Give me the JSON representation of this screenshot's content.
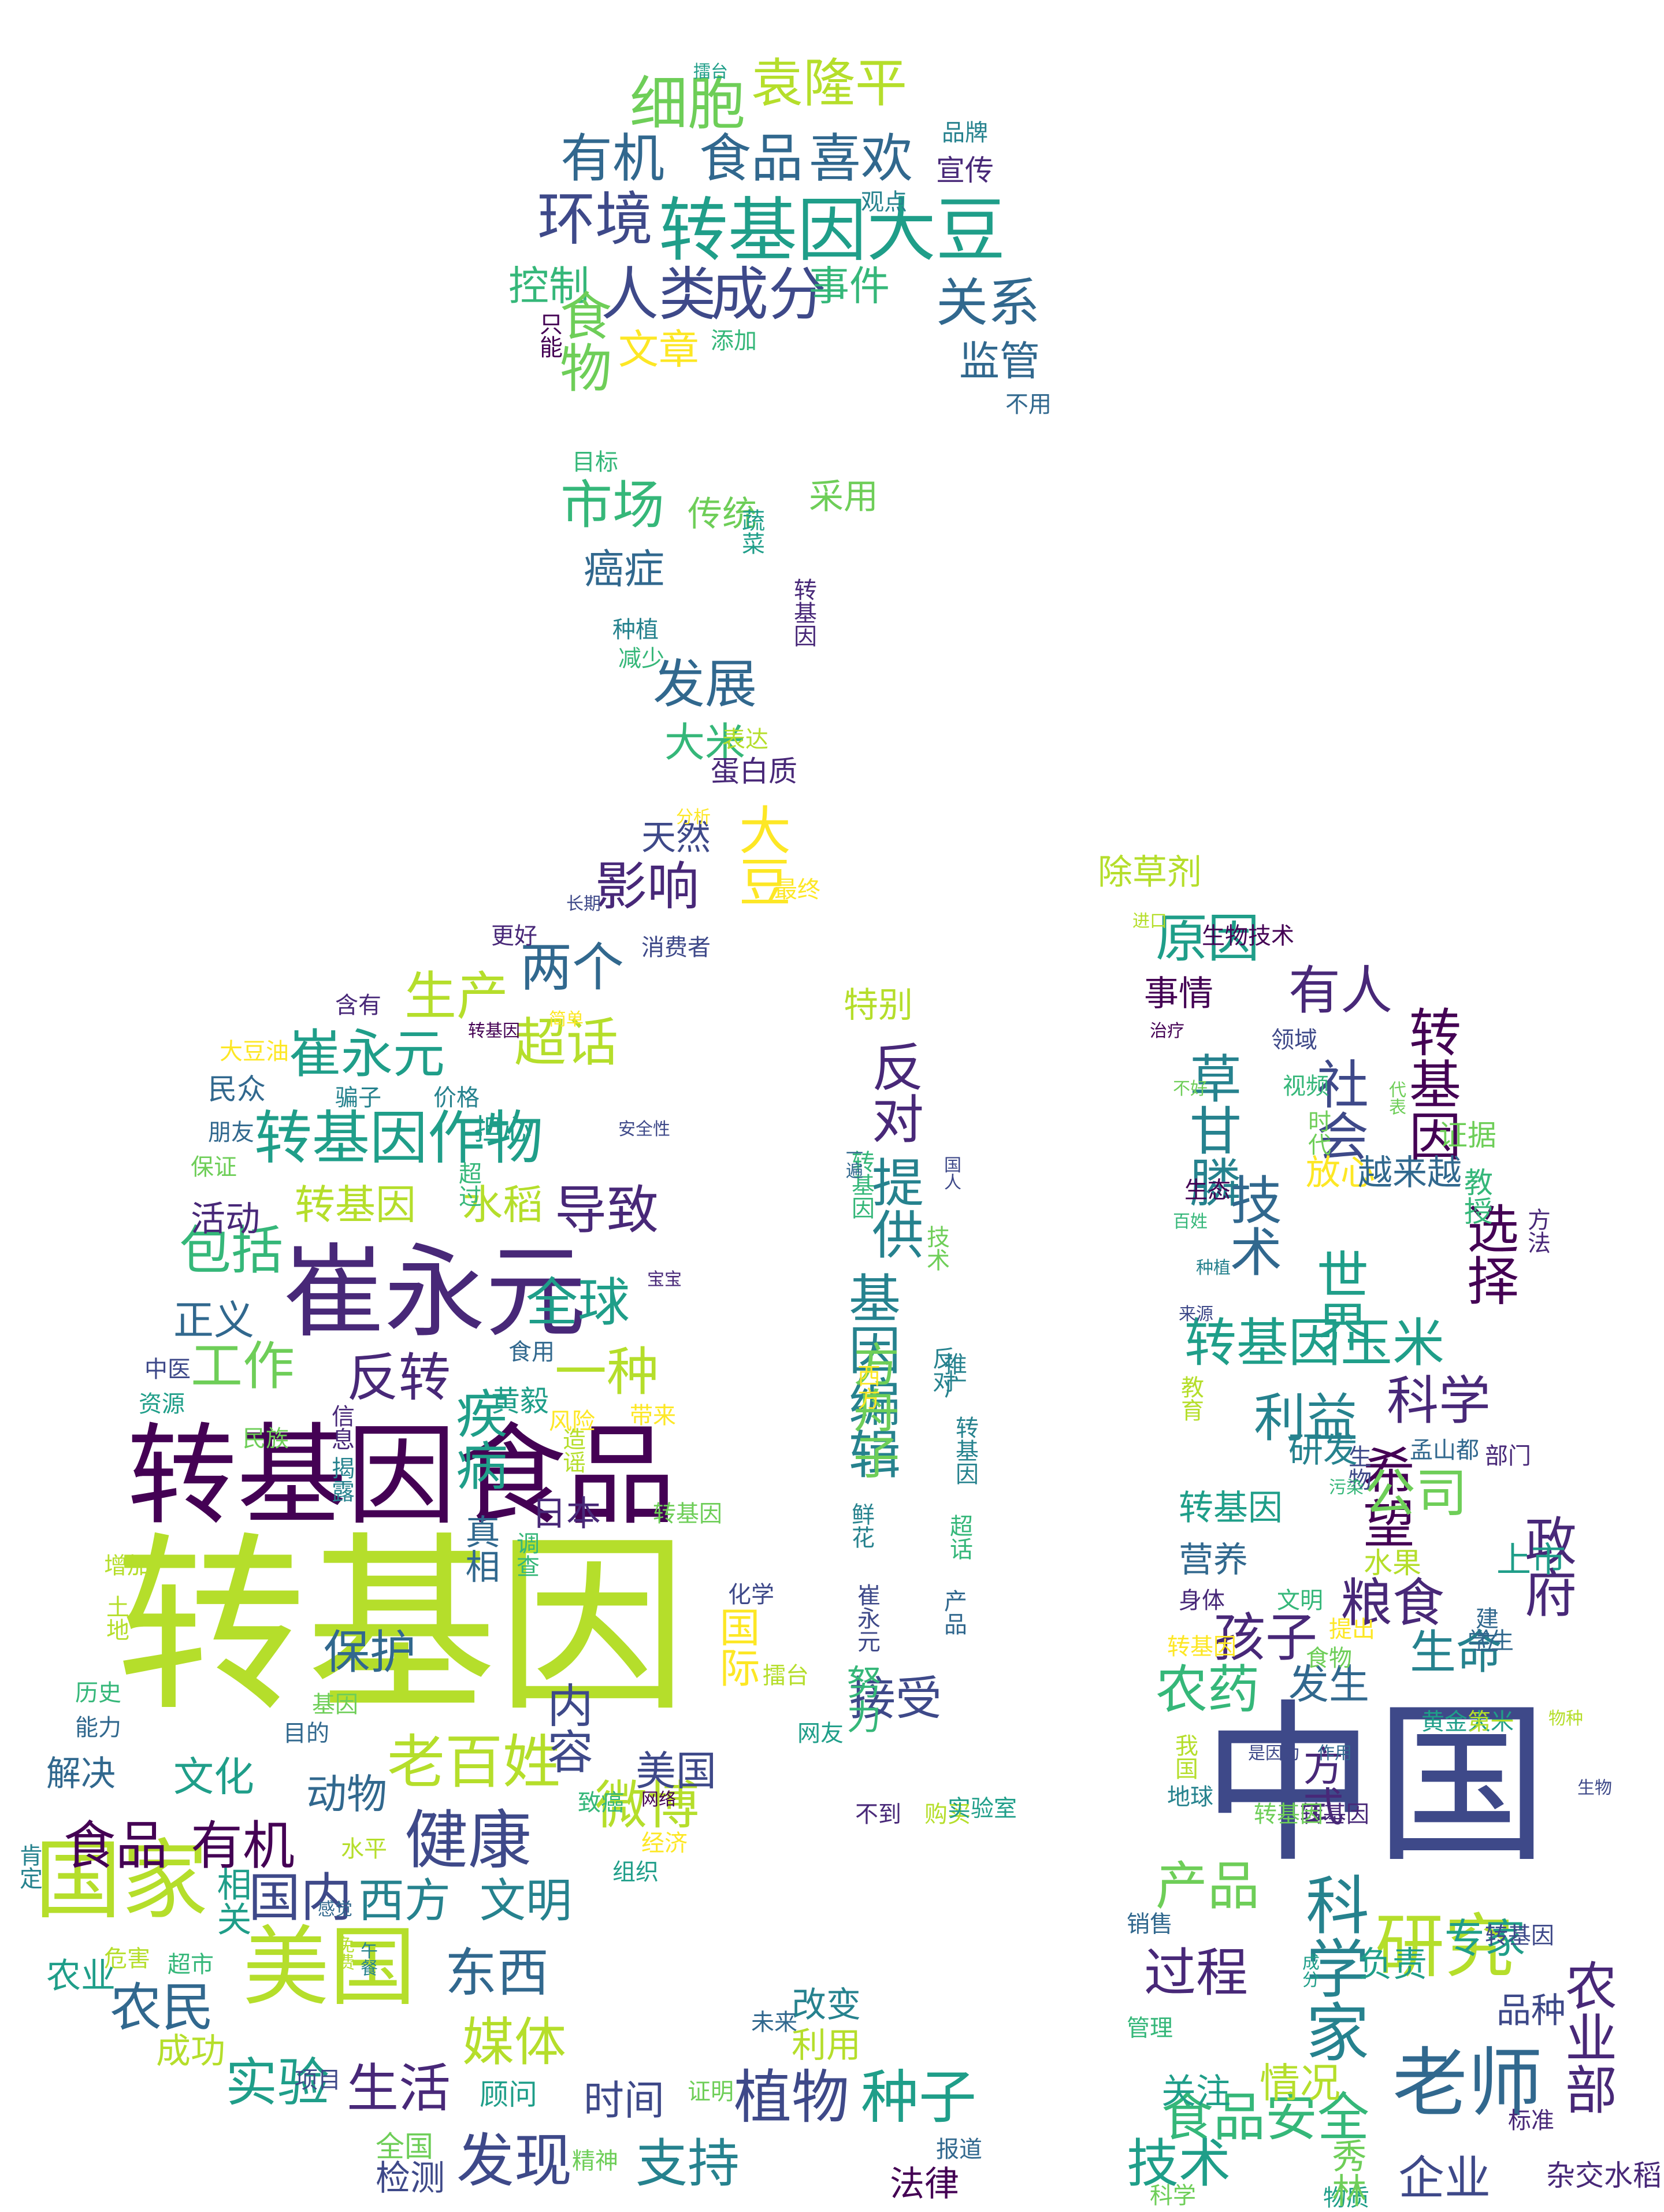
{
  "colors": {
    "background": "#ffffff",
    "palette": [
      "#440154",
      "#482878",
      "#3e4989",
      "#31688e",
      "#26828e",
      "#1f9e89",
      "#35b779",
      "#6ece58",
      "#b5de2b",
      "#fde725"
    ]
  },
  "words": [
    {
      "text": "转基因"
    },
    {
      "text": "中国"
    },
    {
      "text": "转基因食品"
    },
    {
      "text": "崔永元"
    },
    {
      "text": "国家"
    },
    {
      "text": "美国"
    },
    {
      "text": "老师"
    },
    {
      "text": "转基因大豆"
    },
    {
      "text": "研究"
    },
    {
      "text": "健康"
    },
    {
      "text": "科学家"
    },
    {
      "text": "发现"
    },
    {
      "text": "环境"
    },
    {
      "text": "人类"
    },
    {
      "text": "成分"
    },
    {
      "text": "细胞"
    },
    {
      "text": "袁隆平"
    },
    {
      "text": "有机"
    },
    {
      "text": "食品"
    },
    {
      "text": "喜欢"
    },
    {
      "text": "关系"
    },
    {
      "text": "事件"
    },
    {
      "text": "控制"
    },
    {
      "text": "文章"
    },
    {
      "text": "监管"
    },
    {
      "text": "食物"
    },
    {
      "text": "市场"
    },
    {
      "text": "传统"
    },
    {
      "text": "采用"
    },
    {
      "text": "癌症"
    },
    {
      "text": "发展"
    },
    {
      "text": "大米"
    },
    {
      "text": "蛋白质"
    },
    {
      "text": "大豆"
    },
    {
      "text": "影响"
    },
    {
      "text": "天然"
    },
    {
      "text": "生产"
    },
    {
      "text": "两个"
    },
    {
      "text": "崔永元"
    },
    {
      "text": "超话"
    },
    {
      "text": "转基因作物"
    },
    {
      "text": "转基因"
    },
    {
      "text": "水稻"
    },
    {
      "text": "导致"
    },
    {
      "text": "包括"
    },
    {
      "text": "全球"
    },
    {
      "text": "正义"
    },
    {
      "text": "工作"
    },
    {
      "text": "反转"
    },
    {
      "text": "一种"
    },
    {
      "text": "疾病"
    },
    {
      "text": "食品"
    },
    {
      "text": "有机"
    },
    {
      "text": "国内"
    },
    {
      "text": "西方"
    },
    {
      "text": "文明"
    },
    {
      "text": "老百姓"
    },
    {
      "text": "微博"
    },
    {
      "text": "东西"
    },
    {
      "text": "媒体"
    },
    {
      "text": "农民"
    },
    {
      "text": "实验"
    },
    {
      "text": "生活"
    },
    {
      "text": "植物"
    },
    {
      "text": "种子"
    },
    {
      "text": "支持"
    },
    {
      "text": "时间"
    },
    {
      "text": "检测"
    },
    {
      "text": "法律"
    },
    {
      "text": "改变"
    },
    {
      "text": "利用"
    },
    {
      "text": "文化"
    },
    {
      "text": "动物"
    },
    {
      "text": "农业"
    },
    {
      "text": "成功"
    },
    {
      "text": "相关"
    },
    {
      "text": "接受"
    },
    {
      "text": "特别"
    },
    {
      "text": "反对"
    },
    {
      "text": "提供"
    },
    {
      "text": "基因编辑"
    },
    {
      "text": "方舟子"
    },
    {
      "text": "除草剂"
    },
    {
      "text": "原因"
    },
    {
      "text": "有人"
    },
    {
      "text": "事情"
    },
    {
      "text": "草甘膦"
    },
    {
      "text": "社会"
    },
    {
      "text": "技术"
    },
    {
      "text": "世界"
    },
    {
      "text": "转基因"
    },
    {
      "text": "转基因玉米"
    },
    {
      "text": "利益"
    },
    {
      "text": "希望"
    },
    {
      "text": "公司"
    },
    {
      "text": "科学"
    },
    {
      "text": "选择"
    },
    {
      "text": "粮食"
    },
    {
      "text": "孩子"
    },
    {
      "text": "政府"
    },
    {
      "text": "生命"
    },
    {
      "text": "农药"
    },
    {
      "text": "发生"
    },
    {
      "text": "方式"
    },
    {
      "text": "食品安全"
    },
    {
      "text": "产品"
    },
    {
      "text": "过程"
    },
    {
      "text": "技术"
    },
    {
      "text": "农业部"
    },
    {
      "text": "企业"
    },
    {
      "text": "情况"
    },
    {
      "text": "关注"
    },
    {
      "text": "专家"
    },
    {
      "text": "品种"
    },
    {
      "text": "擂台"
    },
    {
      "text": "品牌"
    },
    {
      "text": "观点"
    },
    {
      "text": "宣传"
    },
    {
      "text": "只能"
    },
    {
      "text": "添加"
    },
    {
      "text": "不用"
    },
    {
      "text": "目标"
    },
    {
      "text": "蔬菜"
    },
    {
      "text": "转基因"
    },
    {
      "text": "种植"
    },
    {
      "text": "减少"
    },
    {
      "text": "表达"
    },
    {
      "text": "分析"
    },
    {
      "text": "最终"
    },
    {
      "text": "长期"
    },
    {
      "text": "更好"
    },
    {
      "text": "消费者"
    },
    {
      "text": "含有"
    },
    {
      "text": "简单"
    },
    {
      "text": "转基因"
    },
    {
      "text": "大豆油"
    },
    {
      "text": "民众"
    },
    {
      "text": "骗子"
    },
    {
      "text": "价格"
    },
    {
      "text": "担心"
    },
    {
      "text": "朋友"
    },
    {
      "text": "安全性"
    },
    {
      "text": "保证"
    },
    {
      "text": "超过"
    },
    {
      "text": "活动"
    },
    {
      "text": "中医"
    },
    {
      "text": "食用"
    },
    {
      "text": "黄毅"
    },
    {
      "text": "资源"
    },
    {
      "text": "信息"
    },
    {
      "text": "风险"
    },
    {
      "text": "带来"
    },
    {
      "text": "民族"
    },
    {
      "text": "造谣"
    },
    {
      "text": "真相"
    },
    {
      "text": "揭露"
    },
    {
      "text": "日本"
    },
    {
      "text": "转基因"
    },
    {
      "text": "增加"
    },
    {
      "text": "调查"
    },
    {
      "text": "土地"
    },
    {
      "text": "保护"
    },
    {
      "text": "化学"
    },
    {
      "text": "历史"
    },
    {
      "text": "基因"
    },
    {
      "text": "能力"
    },
    {
      "text": "目的"
    },
    {
      "text": "解决"
    },
    {
      "text": "内容"
    },
    {
      "text": "国际"
    },
    {
      "text": "美国"
    },
    {
      "text": "擂台"
    },
    {
      "text": "网友"
    },
    {
      "text": "致癌"
    },
    {
      "text": "网络"
    },
    {
      "text": "经济"
    },
    {
      "text": "水平"
    },
    {
      "text": "组织"
    },
    {
      "text": "肯定"
    },
    {
      "text": "感觉"
    },
    {
      "text": "危害"
    },
    {
      "text": "超市"
    },
    {
      "text": "免费"
    },
    {
      "text": "午餐"
    },
    {
      "text": "证明"
    },
    {
      "text": "顾问"
    },
    {
      "text": "精神"
    },
    {
      "text": "全国"
    },
    {
      "text": "项目"
    },
    {
      "text": "未来"
    },
    {
      "text": "不到"
    },
    {
      "text": "购买"
    },
    {
      "text": "报道"
    },
    {
      "text": "努力"
    },
    {
      "text": "实验室"
    },
    {
      "text": "推广"
    },
    {
      "text": "转基因"
    },
    {
      "text": "进口"
    },
    {
      "text": "生物技术"
    },
    {
      "text": "治疗"
    },
    {
      "text": "领域"
    },
    {
      "text": "不好"
    },
    {
      "text": "视频"
    },
    {
      "text": "代表"
    },
    {
      "text": "时代"
    },
    {
      "text": "生态"
    },
    {
      "text": "放心"
    },
    {
      "text": "越来越"
    },
    {
      "text": "证据"
    },
    {
      "text": "教授"
    },
    {
      "text": "百姓"
    },
    {
      "text": "种植"
    },
    {
      "text": "来源"
    },
    {
      "text": "教育"
    },
    {
      "text": "研发"
    },
    {
      "text": "孟山都"
    },
    {
      "text": "部门"
    },
    {
      "text": "转基因"
    },
    {
      "text": "生物"
    },
    {
      "text": "污染"
    },
    {
      "text": "营养"
    },
    {
      "text": "水果"
    },
    {
      "text": "上市"
    },
    {
      "text": "身体"
    },
    {
      "text": "文明"
    },
    {
      "text": "建立"
    },
    {
      "text": "转基因"
    },
    {
      "text": "食物"
    },
    {
      "text": "提出"
    },
    {
      "text": "学生"
    },
    {
      "text": "黄金大米"
    },
    {
      "text": "第一"
    },
    {
      "text": "物种"
    },
    {
      "text": "作用"
    },
    {
      "text": "是因为"
    },
    {
      "text": "我国"
    },
    {
      "text": "地球"
    },
    {
      "text": "生物"
    },
    {
      "text": "销售"
    },
    {
      "text": "转基因"
    },
    {
      "text": "成分"
    },
    {
      "text": "管理"
    },
    {
      "text": "负责"
    },
    {
      "text": "标准"
    },
    {
      "text": "科学"
    },
    {
      "text": "物质"
    },
    {
      "text": "杂交水稻"
    },
    {
      "text": "秀林"
    },
    {
      "text": "方法"
    },
    {
      "text": "宝宝"
    },
    {
      "text": "一遍"
    },
    {
      "text": "国人"
    },
    {
      "text": "技术"
    },
    {
      "text": "西方"
    },
    {
      "text": "反对"
    },
    {
      "text": "转基因"
    },
    {
      "text": "鲜花"
    },
    {
      "text": "崔永元"
    },
    {
      "text": "超话"
    },
    {
      "text": "产品"
    },
    {
      "text": "转基因"
    },
    {
      "text": "转基因"
    },
    {
      "text": "目的"
    },
    {
      "text": "利用"
    }
  ]
}
